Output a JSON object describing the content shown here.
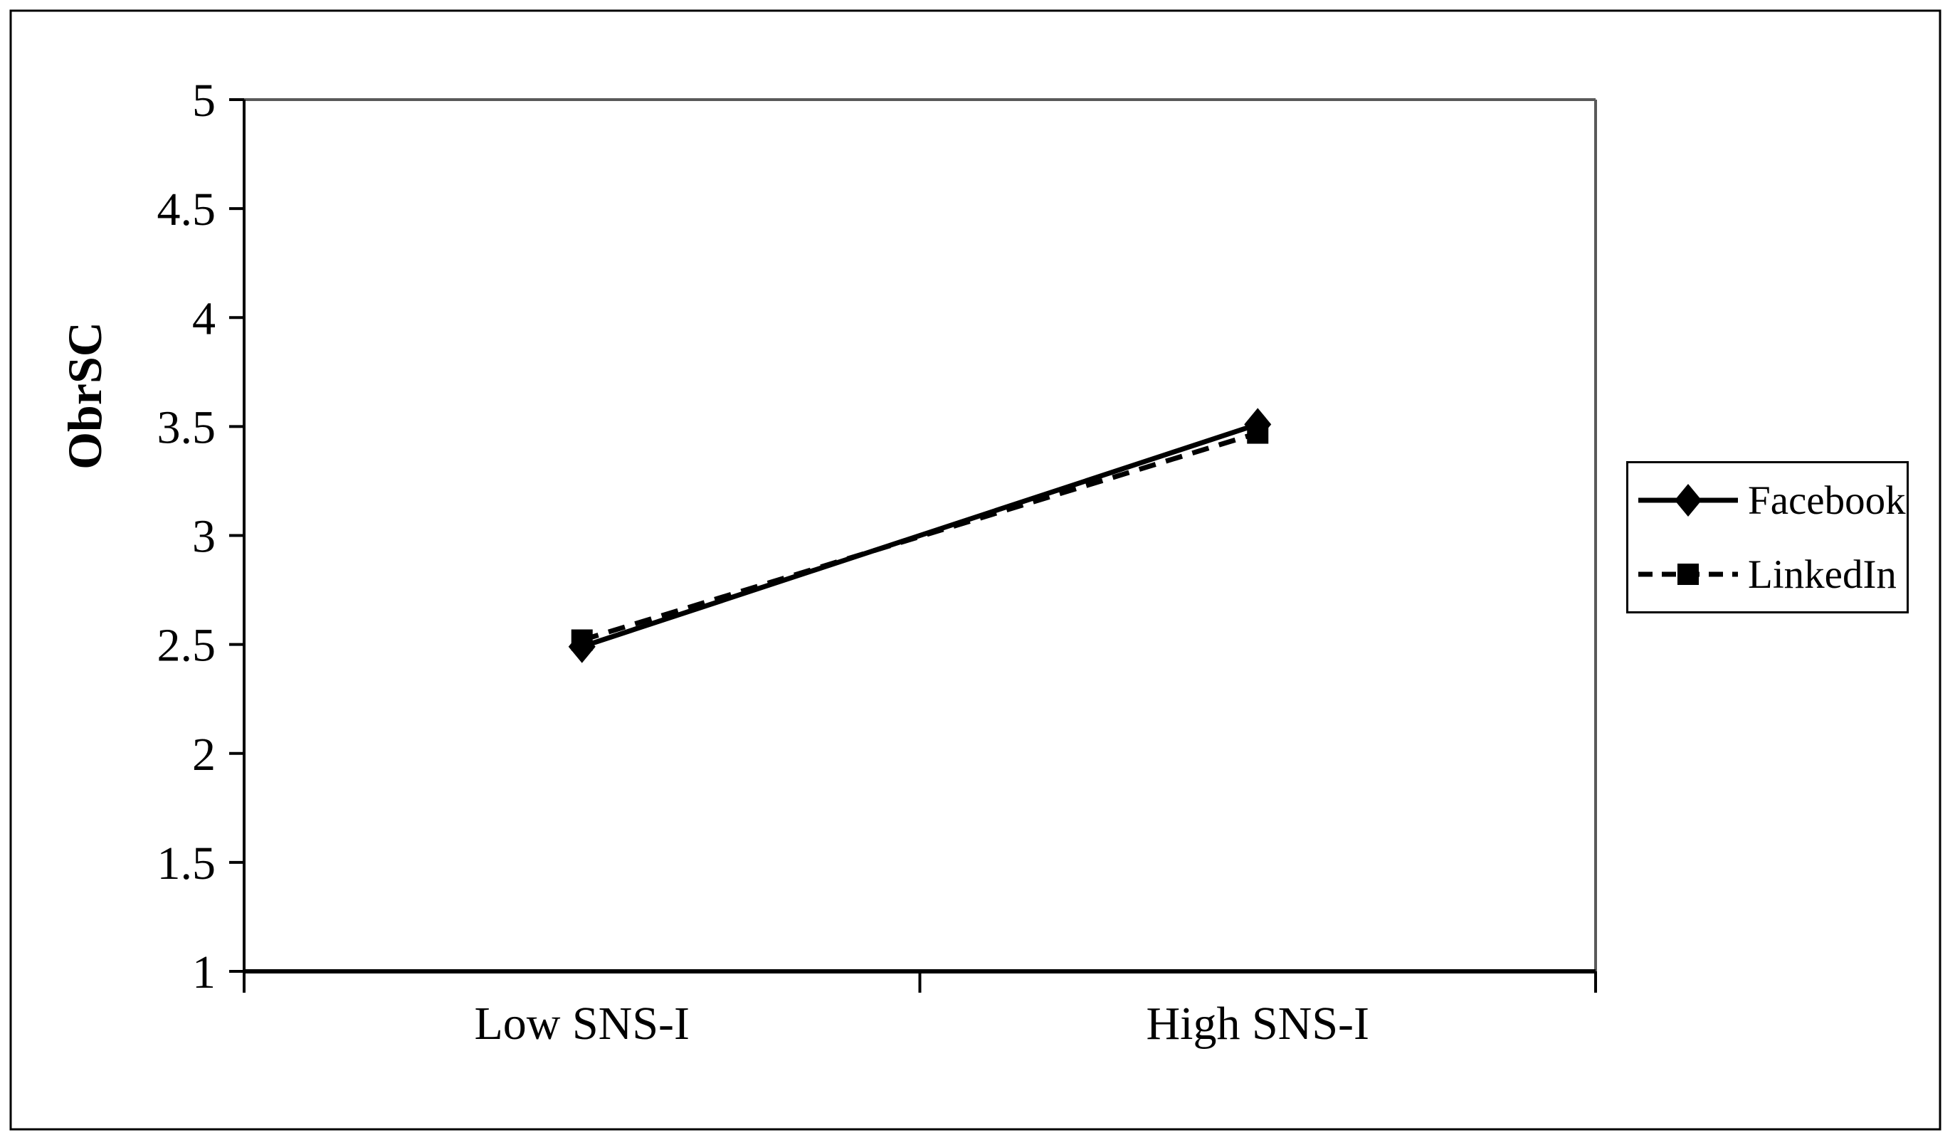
{
  "figure": {
    "background": "#ffffff",
    "border_color": "#000000"
  },
  "chart_data": {
    "type": "line",
    "title": "",
    "xlabel": "",
    "ylabel": "ObrSC",
    "categories": [
      "Low SNS-I",
      "High SNS-I"
    ],
    "series": [
      {
        "name": "Facebook",
        "values": [
          2.49,
          3.51
        ],
        "line_style": "solid",
        "marker": "diamond",
        "color": "#000000"
      },
      {
        "name": "LinkedIn",
        "values": [
          2.52,
          3.47
        ],
        "line_style": "dashed",
        "marker": "square",
        "color": "#000000"
      }
    ],
    "y_ticks": [
      {
        "value": 5,
        "label": "5"
      },
      {
        "value": 4.5,
        "label": "4.5"
      },
      {
        "value": 4,
        "label": "4"
      },
      {
        "value": 3.5,
        "label": "3.5"
      },
      {
        "value": 3,
        "label": "3"
      },
      {
        "value": 2.5,
        "label": "2.5"
      },
      {
        "value": 2,
        "label": "2"
      },
      {
        "value": 1.5,
        "label": "1.5"
      },
      {
        "value": 1,
        "label": "1"
      }
    ],
    "ylim": [
      1,
      5
    ],
    "grid": false,
    "legend_position": "right",
    "axis_color": "#000000",
    "plot_border_color": "#595959"
  }
}
